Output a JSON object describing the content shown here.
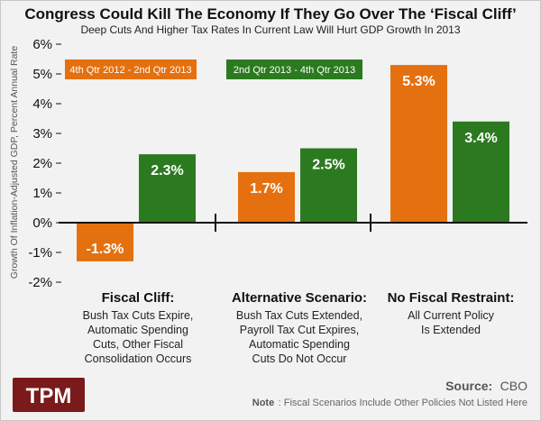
{
  "colors": {
    "series_1": "#e5700f",
    "series_2": "#2c7a1f",
    "logo_bg": "#7a1a1a",
    "background": "#f2f2f2"
  },
  "chart_data": {
    "type": "bar",
    "title": "Congress Could Kill The Economy If They Go Over The ‘Fiscal Cliff’",
    "subtitle": "Deep Cuts And Higher Tax Rates In Current Law Will Hurt GDP Growth In 2013",
    "ylabel": "Growth Of Inflation-Adjusted GDP, Percent Annual Rate",
    "xlabel": "",
    "ylim": [
      -2,
      6
    ],
    "yticks": [
      -2,
      -1,
      0,
      1,
      2,
      3,
      4,
      5,
      6
    ],
    "ytick_labels": [
      "-2%",
      "-1%",
      "0%",
      "1%",
      "2%",
      "3%",
      "4%",
      "5%",
      "6%"
    ],
    "grid": false,
    "categories": [
      {
        "title": "Fiscal Cliff:",
        "lines": [
          "Bush Tax Cuts Expire,",
          "Automatic Spending",
          "Cuts, Other Fiscal",
          "Consolidation Occurs"
        ]
      },
      {
        "title": "Alternative Scenario:",
        "lines": [
          "Bush Tax Cuts Extended,",
          "Payroll Tax Cut Expires,",
          "Automatic Spending",
          "Cuts Do Not Occur"
        ]
      },
      {
        "title": "No Fiscal Restraint:",
        "lines": [
          "All Current Policy",
          "Is Extended"
        ]
      }
    ],
    "series": [
      {
        "name": "4th Qtr 2012 - 2nd Qtr 2013",
        "color": "#e5700f",
        "values": [
          -1.3,
          1.7,
          5.3
        ],
        "labels": [
          "-1.3%",
          "1.7%",
          "5.3%"
        ]
      },
      {
        "name": "2nd Qtr 2013 - 4th Qtr 2013",
        "color": "#2c7a1f",
        "values": [
          2.3,
          2.5,
          3.4
        ],
        "labels": [
          "2.3%",
          "2.5%",
          "3.4%"
        ]
      }
    ]
  },
  "source": {
    "label": "Source:",
    "value": "CBO"
  },
  "note": {
    "label": "Note",
    "text": ": Fiscal Scenarios Include Other Policies Not Listed Here"
  },
  "logo": {
    "text": "TPM"
  }
}
